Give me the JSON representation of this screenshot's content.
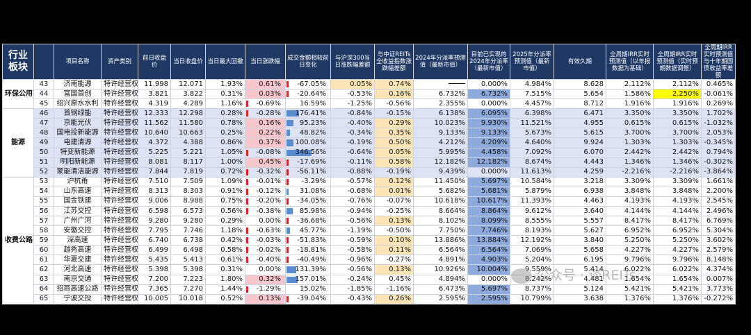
{
  "columns": [
    "行业板块",
    "",
    "项目名称",
    "资产类别",
    "前日收盘价",
    "当日收盘价",
    "当日最大回撤",
    "当日涨跌幅",
    "成交金额相较前日变化",
    "与沪深300当日涨跌幅差额",
    "与中证REITs全收益指数涨跌幅差额",
    "2024年分派率预测值（最新市值）",
    "目前已实现的2024年分派率（最新市值）",
    "2025年分派率预测值（最新市值）",
    "有效久期",
    "全周期IRR实时预测值（以年报数据为基础）",
    "全周期IRR实时预测值（实时预期数据调整）",
    "全周期IRR实时预测值与十年期国债收益率差额"
  ],
  "sectors": [
    "环保公用事业",
    "能源",
    "收费公路"
  ],
  "rows": [
    {
      "idx": "43",
      "name": "济南能源",
      "type": "特许经营权",
      "prev": "11.998",
      "close": "12.071",
      "dd": "1.93%",
      "chg": "0.61%",
      "vol": "-67.05%",
      "hs300": "0.05%",
      "reits": "0.74%",
      "d24p": "",
      "d24r": "0.000%",
      "d25p": "4.984%",
      "dur": "8.628",
      "irr1": "2.112%",
      "irr2": "2.112%",
      "spread": "0.465%"
    },
    {
      "idx": "44",
      "name": "富国首创",
      "type": "特许经营权",
      "prev": "3.821",
      "close": "3.822",
      "dd": "0.31%",
      "chg": "0.03%",
      "vol": "-20.64%",
      "hs300": "-0.53%",
      "reits": "0.16%",
      "d24p": "6.732%",
      "d24r": "6.732%",
      "d25p": "7.515%",
      "dur": "5.654",
      "irr1": "1.586%",
      "irr2": "2.250%",
      "spread": "-0.061%"
    },
    {
      "idx": "45",
      "name": "绍兴原水水利",
      "type": "特许经营权",
      "prev": "4.319",
      "close": "4.289",
      "dd": "1.16%",
      "chg": "-0.69%",
      "vol": "16.59%",
      "hs300": "-1.25%",
      "reits": "-0.56%",
      "d24p": "2.355%",
      "d24r": "0.000%",
      "d25p": "4.457%",
      "dur": "8.712",
      "irr1": "1.916%",
      "irr2": "1.916%",
      "spread": "0.269%"
    },
    {
      "idx": "46",
      "name": "首钢绿能",
      "type": "特许经营权",
      "prev": "12.333",
      "close": "12.298",
      "dd": "0.28%",
      "chg": "-0.28%",
      "vol": "176.41%",
      "hs300": "-0.84%",
      "reits": "-0.15%",
      "d24p": "6.138%",
      "d24r": "6.095%",
      "d25p": "6.398%",
      "dur": "6.471",
      "irr1": "3.350%",
      "irr2": "3.350%",
      "spread": "1.702%"
    },
    {
      "idx": "47",
      "name": "京能光伏",
      "type": "特许经营权",
      "prev": "11.562",
      "close": "11.580",
      "dd": "0.78%",
      "chg": "0.16%",
      "vol": "95.23%",
      "hs300": "-0.40%",
      "reits": "0.29%",
      "d24p": "10.023%",
      "d24r": "9.930%",
      "d25p": "11.521%",
      "dur": "4.955",
      "irr1": "0.615%",
      "irr2": "0.615%",
      "spread": "-1.032%"
    },
    {
      "idx": "48",
      "name": "国电投新能源",
      "type": "特许经营权",
      "prev": "10.640",
      "close": "10.663",
      "dd": "0.25%",
      "chg": "0.22%",
      "vol": "48.82%",
      "hs300": "-0.34%",
      "reits": "0.35%",
      "d24p": "9.133%",
      "d24r": "9.133%",
      "d25p": "5.673%",
      "dur": "5.615",
      "irr1": "3.700%",
      "irr2": "3.700%",
      "spread": "2.053%"
    },
    {
      "idx": "49",
      "name": "电建清源",
      "type": "特许经营权",
      "prev": "4.372",
      "close": "4.388",
      "dd": "0.86%",
      "chg": "0.37%",
      "vol": "100.08%",
      "hs300": "-0.19%",
      "reits": "0.50%",
      "d24p": "4.212%",
      "d24r": "4.209%",
      "d25p": "4.640%",
      "dur": "9.924",
      "irr1": "1.303%",
      "irr2": "1.303%",
      "spread": "-0.345%"
    },
    {
      "idx": "50",
      "name": "特变新能源",
      "type": "特许经营权",
      "prev": "5.225",
      "close": "5.221",
      "dd": "1.05%",
      "chg": "-0.08%",
      "vol": "346.56%",
      "hs300": "-0.64%",
      "reits": "0.05%",
      "d24p": "5.995%",
      "d24r": "4.458%",
      "d25p": "7.092%",
      "dur": "6.070",
      "irr1": "2.442%",
      "irr2": "2.442%",
      "spread": "0.794%"
    },
    {
      "idx": "51",
      "name": "明阳新能源",
      "type": "特许经营权",
      "prev": "8.081",
      "close": "8.117",
      "dd": "1.00%",
      "chg": "0.45%",
      "vol": "-17.69%",
      "hs300": "-0.11%",
      "reits": "0.58%",
      "d24p": "12.182%",
      "d24r": "12.182%",
      "d25p": "8.674%",
      "dur": "4.443",
      "irr1": "1.346%",
      "irr2": "1.346%",
      "spread": "-0.302%"
    },
    {
      "idx": "52",
      "name": "蒙能清洁能源",
      "type": "特许经营权",
      "prev": "7.844",
      "close": "7.819",
      "dd": "0.72%",
      "chg": "-0.32%",
      "vol": "-56.11%",
      "hs300": "-0.88%",
      "reits": "-0.19%",
      "d24p": "9.439%",
      "d24r": "0.000%",
      "d25p": "11.613%",
      "dur": "4.259",
      "irr1": "-2.216%",
      "irr2": "-2.216%",
      "spread": "-3.864%"
    },
    {
      "idx": "53",
      "name": "沪杭甬",
      "type": "特许经营权",
      "prev": "7.510",
      "close": "7.509",
      "dd": "1.09%",
      "chg": "-0.01%",
      "vol": "-3.29%",
      "hs300": "-0.57%",
      "reits": "0.12%",
      "d24p": "11.450%",
      "d24r": "5.697%",
      "d25p": "10.584%",
      "dur": "3.218",
      "irr1": "3.309%",
      "irr2": "3.309%",
      "spread": "1.661%"
    },
    {
      "idx": "54",
      "name": "山东高速",
      "type": "特许经营权",
      "prev": "8.313",
      "close": "8.303",
      "dd": "0.91%",
      "chg": "-0.12%",
      "vol": "31.08%",
      "hs300": "-0.68%",
      "reits": "0.01%",
      "d24p": "5.682%",
      "d24r": "5.681%",
      "d25p": "5.879%",
      "dur": "6.938",
      "irr1": "3.848%",
      "irr2": "3.848%",
      "spread": "2.200%"
    },
    {
      "idx": "55",
      "name": "国金铁建",
      "type": "特许经营权",
      "prev": "9.006",
      "close": "8.988",
      "dd": "0.75%",
      "chg": "-0.20%",
      "vol": "-34.05%",
      "hs300": "-0.76%",
      "reits": "-0.07%",
      "d24p": "10.618%",
      "d24r": "10.617%",
      "d25p": "11.393%",
      "dur": "4.463",
      "irr1": "4.193%",
      "irr2": "4.193%",
      "spread": "2.545%"
    },
    {
      "idx": "56",
      "name": "江苏交控",
      "type": "特许经营权",
      "prev": "6.598",
      "close": "6.573",
      "dd": "0.56%",
      "chg": "-0.38%",
      "vol": "85.98%",
      "hs300": "-0.94%",
      "reits": "-0.25%",
      "d24p": "8.664%",
      "d24r": "8.864%",
      "d25p": "9.612%",
      "dur": "3.640",
      "irr1": "4.144%",
      "irr2": "4.144%",
      "spread": "2.496%"
    },
    {
      "idx": "57",
      "name": "广州广河",
      "type": "特许经营权",
      "prev": "9.280",
      "close": "9.280",
      "dd": "0.29%",
      "chg": "0.00%",
      "vol": "-36.68%",
      "hs300": "-0.56%",
      "reits": "0.13%",
      "d24p": "8.102%",
      "d24r": "8.099%",
      "d25p": "8.555%",
      "dur": "5.557",
      "irr1": "8.417%",
      "irr2": "8.417%",
      "spread": "6.769%"
    },
    {
      "idx": "58",
      "name": "安徽交控",
      "type": "特许经营权",
      "prev": "7.795",
      "close": "7.746",
      "dd": "1.18%",
      "chg": "-0.63%",
      "vol": "45.77%",
      "hs300": "-1.19%",
      "reits": "-0.50%",
      "d24p": "7.750%",
      "d24r": "7.746%",
      "d25p": "8.193%",
      "dur": "5.627",
      "irr1": "6.952%",
      "irr2": "6.952%",
      "spread": "5.304%"
    },
    {
      "idx": "59",
      "name": "深高速",
      "type": "特许经营权",
      "prev": "6.740",
      "close": "6.738",
      "dd": "0.42%",
      "chg": "-0.03%",
      "vol": "-51.83%",
      "hs300": "-0.59%",
      "reits": "0.10%",
      "d24p": "13.886%",
      "d24r": "13.884%",
      "d25p": "12.192%",
      "dur": "3.840",
      "irr1": "5.250%",
      "irr2": "5.250%",
      "spread": "3.602%"
    },
    {
      "idx": "60",
      "name": "越秀高速",
      "type": "特许经营权",
      "prev": "6.499",
      "close": "6.498",
      "dd": "0.58%",
      "chg": "-0.02%",
      "vol": "-18.81%",
      "hs300": "-0.58%",
      "reits": "0.11%",
      "d24p": "6.564%",
      "d24r": "6.564%",
      "d25p": "7.069%",
      "dur": "5.658",
      "irr1": "4.227%",
      "irr2": "4.227%",
      "spread": "2.579%"
    },
    {
      "idx": "61",
      "name": "华夏交建",
      "type": "特许经营权",
      "prev": "5.435",
      "close": "5.413",
      "dd": "0.61%",
      "chg": "-0.40%",
      "vol": "-40.49%",
      "hs300": "-0.96%",
      "reits": "-0.27%",
      "d24p": "4.891%",
      "d24r": "4.903%",
      "d25p": "5.204%",
      "dur": "6.195",
      "irr1": "9.796%",
      "irr2": "9.796%",
      "spread": "8.148%"
    },
    {
      "idx": "62",
      "name": "河北高速",
      "type": "特许经营权",
      "prev": "5.398",
      "close": "5.398",
      "dd": "0.31%",
      "chg": "0.00%",
      "vol": "131.39%",
      "hs300": "-0.56%",
      "reits": "0.13%",
      "d24p": "10.926%",
      "d24r": "10.004%",
      "d25p": "9.559%",
      "dur": "5.414",
      "irr1": "6.022%",
      "irr2": "6.022%",
      "spread": "4.374%"
    },
    {
      "idx": "63",
      "name": "南京交通",
      "type": "特许经营权",
      "prev": "7.200",
      "close": "7.223",
      "dd": "1.80%",
      "chg": "0.32%",
      "vol": "157.01%",
      "hs300": "-0.24%",
      "reits": "0.45%",
      "d24p": "4.894%",
      "d24r": "0.000%",
      "d25p": "8.242%",
      "dur": "4.481",
      "irr1": "1.654%",
      "irr2": "1.654%",
      "spread": "0.007%"
    },
    {
      "idx": "64",
      "name": "招商高速公路",
      "type": "特许经营权",
      "prev": "7.365",
      "close": "7.270",
      "dd": "1.44%",
      "chg": "-1.29%",
      "vol": "15.02%",
      "hs300": "-1.85%",
      "reits": "-1.16%",
      "d24p": "6.473%",
      "d24r": "5.697%",
      "d25p": "8.737%",
      "dur": "5.124",
      "irr1": "5.421%",
      "irr2": "5.421%",
      "spread": "3.773%"
    },
    {
      "idx": "65",
      "name": "宁波交投",
      "type": "特许经营权",
      "prev": "10.005",
      "close": "10.018",
      "dd": "0.52%",
      "chg": "0.13%",
      "vol": "-39.04%",
      "hs300": "-0.43%",
      "reits": "0.26%",
      "d24p": "2.595%",
      "d24r": "2.595%",
      "d25p": "10.799%",
      "dur": "3.638",
      "irr1": "1.376%",
      "irr2": "1.376%",
      "spread": "-0.272%"
    }
  ],
  "watermark": "公众号 · 谈REITs",
  "colors": {
    "header_bg": "#1f3864",
    "stripe": "#dde3f4",
    "pos_red": "#f8c7ce",
    "pos_orange": "#fce4b6",
    "blue": "#8ea9db",
    "yellow": "#ffff00",
    "bar": "#5b8bd0",
    "neg_bar": "#d9232e"
  }
}
